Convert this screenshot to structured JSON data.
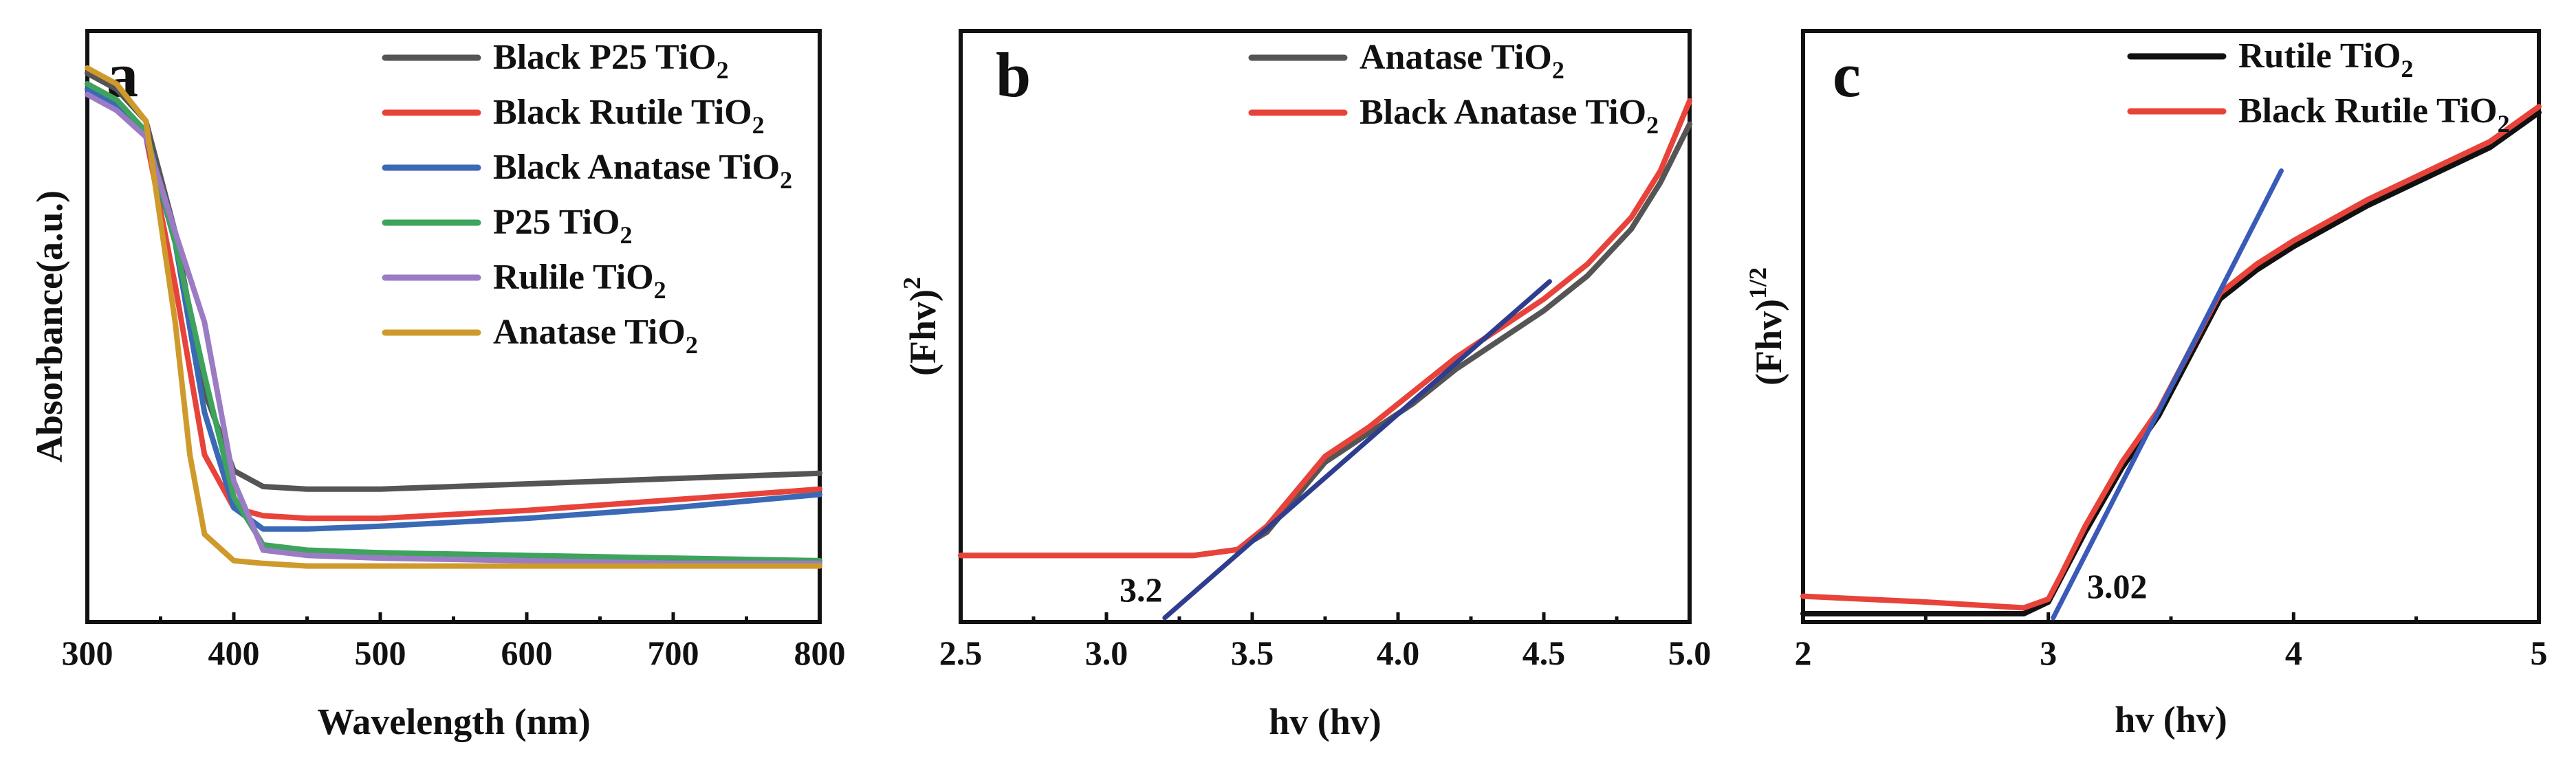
{
  "chart_data": [
    {
      "panel": "a",
      "type": "line",
      "title": "",
      "xlabel": "Wavelength (nm)",
      "ylabel": "Absorbance(a.u.)",
      "xlim": [
        300,
        800
      ],
      "ylim": [
        0,
        1.1
      ],
      "xticks": [
        300,
        400,
        500,
        600,
        700,
        800
      ],
      "grid": false,
      "legend_position": "top-right",
      "series": [
        {
          "name": "Black P25 TiO2",
          "label_main": "Black P25 TiO",
          "label_sub": "2",
          "color": "#555555",
          "x": [
            300,
            320,
            340,
            360,
            380,
            400,
            420,
            450,
            500,
            600,
            700,
            800
          ],
          "y": [
            1.02,
            0.99,
            0.93,
            0.72,
            0.42,
            0.27,
            0.24,
            0.235,
            0.235,
            0.245,
            0.255,
            0.265
          ]
        },
        {
          "name": "Black Rutile TiO2",
          "label_main": "Black Rutile TiO",
          "label_sub": "2",
          "color": "#e8433a",
          "x": [
            300,
            320,
            340,
            360,
            380,
            400,
            420,
            450,
            500,
            600,
            700,
            800
          ],
          "y": [
            1.0,
            0.97,
            0.9,
            0.62,
            0.3,
            0.2,
            0.185,
            0.18,
            0.18,
            0.195,
            0.215,
            0.235
          ]
        },
        {
          "name": "Black Anatase TiO2",
          "label_main": "Black Anatase TiO",
          "label_sub": "2",
          "color": "#3a6ab5",
          "x": [
            300,
            320,
            340,
            360,
            380,
            400,
            420,
            450,
            500,
            600,
            700,
            800
          ],
          "y": [
            0.99,
            0.96,
            0.9,
            0.7,
            0.38,
            0.2,
            0.16,
            0.16,
            0.165,
            0.18,
            0.2,
            0.225
          ]
        },
        {
          "name": "P25 TiO2",
          "label_main": "P25 TiO",
          "label_sub": "2",
          "color": "#3da35d",
          "x": [
            300,
            320,
            340,
            360,
            380,
            400,
            420,
            450,
            500,
            600,
            700,
            800
          ],
          "y": [
            1.0,
            0.97,
            0.91,
            0.7,
            0.45,
            0.22,
            0.13,
            0.12,
            0.115,
            0.11,
            0.105,
            0.1
          ]
        },
        {
          "name": "Rulile TiO2",
          "label_main": "Rulile TiO",
          "label_sub": "2",
          "color": "#9b7cc4",
          "x": [
            300,
            320,
            340,
            360,
            380,
            400,
            420,
            450,
            500,
            600,
            700,
            800
          ],
          "y": [
            0.98,
            0.95,
            0.9,
            0.72,
            0.55,
            0.25,
            0.12,
            0.11,
            0.105,
            0.1,
            0.095,
            0.095
          ]
        },
        {
          "name": "Anatase TiO2",
          "label_main": "Anatase TiO",
          "label_sub": "2",
          "color": "#cf9a2c",
          "x": [
            300,
            320,
            340,
            360,
            370,
            380,
            400,
            420,
            450,
            500,
            600,
            700,
            800
          ],
          "y": [
            1.03,
            1.0,
            0.93,
            0.55,
            0.3,
            0.15,
            0.1,
            0.095,
            0.09,
            0.09,
            0.09,
            0.09,
            0.09
          ]
        }
      ]
    },
    {
      "panel": "b",
      "type": "line",
      "title": "",
      "xlabel": "hv (hv)",
      "ylabel_main": "(Fhv)",
      "ylabel_sup": "2",
      "xlim": [
        2.5,
        5.0
      ],
      "ylim": [
        0,
        1.0
      ],
      "xticks": [
        "2.5",
        "3.0",
        "3.5",
        "4.0",
        "4.5",
        "5.0"
      ],
      "grid": false,
      "legend_position": "top",
      "annotation": "3.2",
      "series": [
        {
          "name": "Anatase TiO2",
          "label_main": "Anatase TiO",
          "label_sub": "2",
          "color": "#555555",
          "x": [
            2.5,
            3.0,
            3.3,
            3.45,
            3.55,
            3.65,
            3.75,
            3.9,
            4.05,
            4.2,
            4.35,
            4.5,
            4.65,
            4.8,
            4.9,
            5.0
          ],
          "y": [
            0.1,
            0.1,
            0.1,
            0.11,
            0.14,
            0.2,
            0.26,
            0.31,
            0.36,
            0.42,
            0.47,
            0.52,
            0.58,
            0.66,
            0.74,
            0.84
          ]
        },
        {
          "name": "Black Anatase TiO2",
          "label_main": "Black Anatase TiO",
          "label_sub": "2",
          "color": "#e8433a",
          "x": [
            2.5,
            3.0,
            3.3,
            3.45,
            3.55,
            3.65,
            3.75,
            3.9,
            4.05,
            4.2,
            4.35,
            4.5,
            4.65,
            4.8,
            4.9,
            5.0
          ],
          "y": [
            0.1,
            0.1,
            0.1,
            0.11,
            0.15,
            0.21,
            0.27,
            0.32,
            0.38,
            0.44,
            0.49,
            0.54,
            0.6,
            0.68,
            0.76,
            0.88
          ]
        }
      ],
      "fit_line": {
        "color": "#2f3d8f",
        "x": [
          3.2,
          4.52
        ],
        "y": [
          0.0,
          0.57
        ]
      }
    },
    {
      "panel": "c",
      "type": "line",
      "title": "",
      "xlabel": "hv (hv)",
      "ylabel_main": "(Fhv)",
      "ylabel_sup": "1/2",
      "xlim": [
        2,
        5
      ],
      "ylim": [
        0,
        1.0
      ],
      "xticks": [
        "2",
        "3",
        "4",
        "5"
      ],
      "grid": false,
      "legend_position": "top-right",
      "annotation": "3.02",
      "series": [
        {
          "name": "Rutile TiO2",
          "label_main": "Rutile TiO",
          "label_sub": "2",
          "color": "#111111",
          "x": [
            2.0,
            2.5,
            2.9,
            3.0,
            3.05,
            3.15,
            3.3,
            3.45,
            3.6,
            3.7,
            3.85,
            4.0,
            4.3,
            4.6,
            4.8,
            5.0
          ],
          "y": [
            0.0,
            0.0,
            0.0,
            0.02,
            0.06,
            0.14,
            0.25,
            0.34,
            0.46,
            0.54,
            0.59,
            0.63,
            0.7,
            0.76,
            0.8,
            0.86
          ]
        },
        {
          "name": "Black Rutile TiO2",
          "label_main": "Black Rutile TiO",
          "label_sub": "2",
          "color": "#e8433a",
          "x": [
            2.0,
            2.5,
            2.9,
            3.0,
            3.05,
            3.15,
            3.3,
            3.45,
            3.6,
            3.7,
            3.85,
            4.0,
            4.3,
            4.6,
            4.8,
            5.0
          ],
          "y": [
            0.03,
            0.02,
            0.01,
            0.025,
            0.065,
            0.15,
            0.26,
            0.35,
            0.47,
            0.55,
            0.6,
            0.64,
            0.71,
            0.77,
            0.81,
            0.87
          ]
        }
      ],
      "fit_line": {
        "color": "#3a5ab8",
        "x": [
          3.02,
          3.95
        ],
        "y": [
          0.0,
          0.76
        ]
      }
    }
  ]
}
